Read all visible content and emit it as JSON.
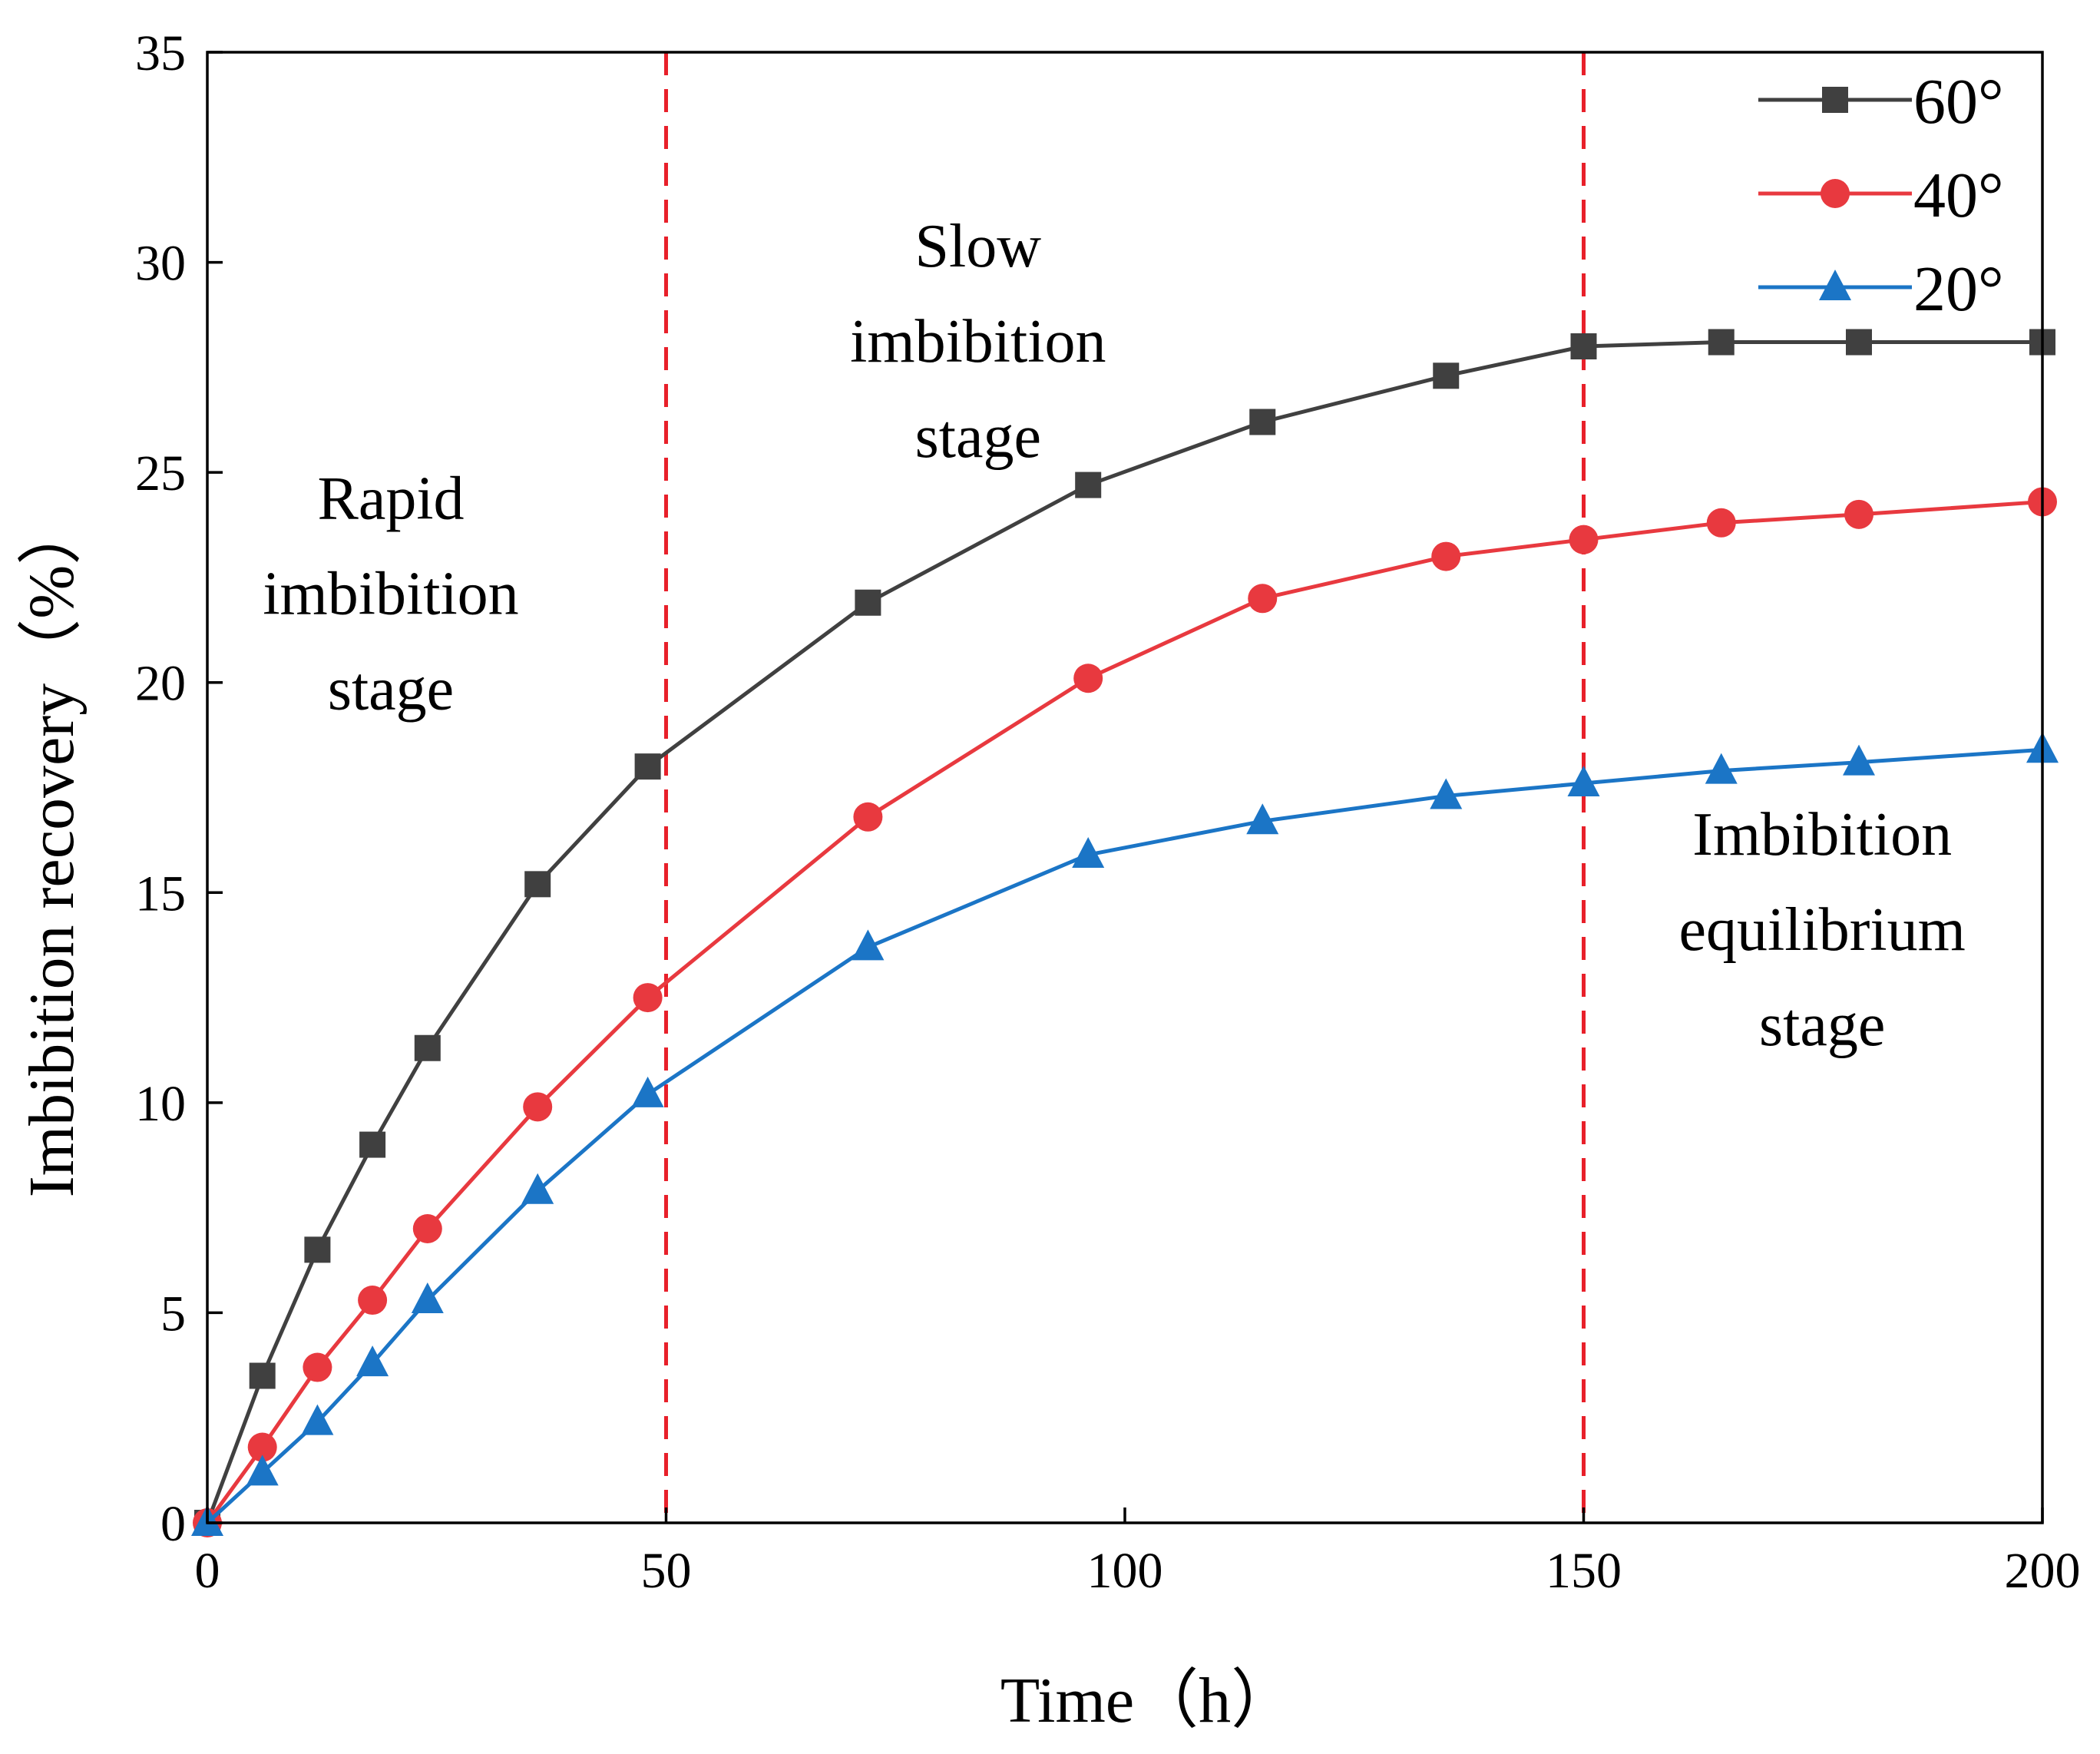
{
  "chart_data": {
    "type": "line",
    "title": "",
    "xlabel": "Time（h）",
    "ylabel": "Imbibition recovery（%）",
    "xlim": [
      0,
      200
    ],
    "ylim": [
      0,
      35
    ],
    "xticks": [
      0,
      50,
      100,
      150,
      200
    ],
    "yticks": [
      0,
      5,
      10,
      15,
      20,
      25,
      30,
      35
    ],
    "grid": false,
    "legend_position": "top-right",
    "series": [
      {
        "name": "60°",
        "color": "#404040",
        "marker": "square",
        "x": [
          0,
          6,
          12,
          18,
          24,
          36,
          48,
          72,
          96,
          115,
          135,
          150,
          165,
          180,
          200
        ],
        "y": [
          0,
          3.5,
          6.5,
          9.0,
          11.3,
          15.2,
          18.0,
          21.9,
          24.7,
          26.2,
          27.3,
          28.0,
          28.1,
          28.1,
          28.1
        ]
      },
      {
        "name": "40°",
        "color": "#e8393f",
        "marker": "circle",
        "x": [
          0,
          6,
          12,
          18,
          24,
          36,
          48,
          72,
          96,
          115,
          135,
          150,
          165,
          180,
          200
        ],
        "y": [
          0,
          1.8,
          3.7,
          5.3,
          7.0,
          9.9,
          12.5,
          16.8,
          20.1,
          22.0,
          23.0,
          23.4,
          23.8,
          24.0,
          24.3
        ]
      },
      {
        "name": "20°",
        "color": "#1b75c6",
        "marker": "triangle",
        "x": [
          0,
          6,
          12,
          18,
          24,
          36,
          48,
          72,
          96,
          115,
          135,
          150,
          165,
          180,
          200
        ],
        "y": [
          0,
          1.2,
          2.4,
          3.8,
          5.3,
          7.9,
          10.2,
          13.7,
          15.9,
          16.7,
          17.3,
          17.6,
          17.9,
          18.1,
          18.4
        ]
      }
    ],
    "vlines": [
      {
        "x": 50,
        "color": "#e8202a",
        "style": "dashed"
      },
      {
        "x": 150,
        "color": "#e8202a",
        "style": "dashed"
      }
    ],
    "annotations": [
      {
        "lines": [
          "Rapid",
          "imbibition",
          "stage"
        ],
        "x": 20,
        "y": 23.9
      },
      {
        "lines": [
          "Slow",
          "imbibition",
          "stage"
        ],
        "x": 84,
        "y": 29.9
      },
      {
        "lines": [
          "Imbibition",
          "equilibrium",
          "stage"
        ],
        "x": 176,
        "y": 15.9
      }
    ]
  }
}
